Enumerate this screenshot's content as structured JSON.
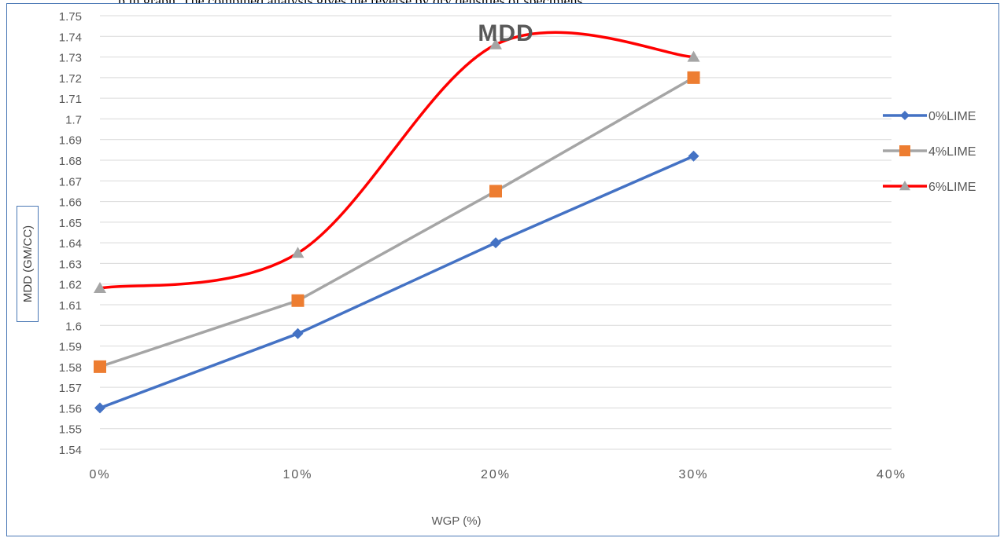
{
  "top_text": "p in graph. The combined analysis gives the reverse by dry densities of specimens",
  "chart_data": {
    "type": "line",
    "title": "MDD",
    "xlabel": "WGP (%)",
    "ylabel": "MDD (GM/CC)",
    "x_ticks": [
      "0%",
      "10%",
      "20%",
      "30%",
      "40%"
    ],
    "xlim": [
      0,
      40
    ],
    "ylim": [
      1.54,
      1.75
    ],
    "y_step": 0.01,
    "y_ticks": [
      "1.54",
      "1.55",
      "1.56",
      "1.57",
      "1.58",
      "1.59",
      "1.6",
      "1.61",
      "1.62",
      "1.63",
      "1.64",
      "1.65",
      "1.66",
      "1.67",
      "1.68",
      "1.69",
      "1.7",
      "1.71",
      "1.72",
      "1.73",
      "1.74",
      "1.75"
    ],
    "grid": true,
    "legend_position": "right",
    "x": [
      0,
      10,
      20,
      30
    ],
    "series": [
      {
        "name": "0%LIME",
        "values": [
          1.56,
          1.596,
          1.64,
          1.682
        ],
        "color": "#4472c4",
        "marker": "diamond",
        "smooth": false
      },
      {
        "name": "4%LIME",
        "values": [
          1.58,
          1.612,
          1.665,
          1.72
        ],
        "color": "#a5a5a5",
        "marker_color": "#ed7d31",
        "marker": "square",
        "smooth": false
      },
      {
        "name": "6%LIME",
        "values": [
          1.618,
          1.635,
          1.736,
          1.73
        ],
        "color": "#ff0000",
        "marker_color": "#a5a5a5",
        "marker": "triangle",
        "smooth": true
      }
    ]
  }
}
